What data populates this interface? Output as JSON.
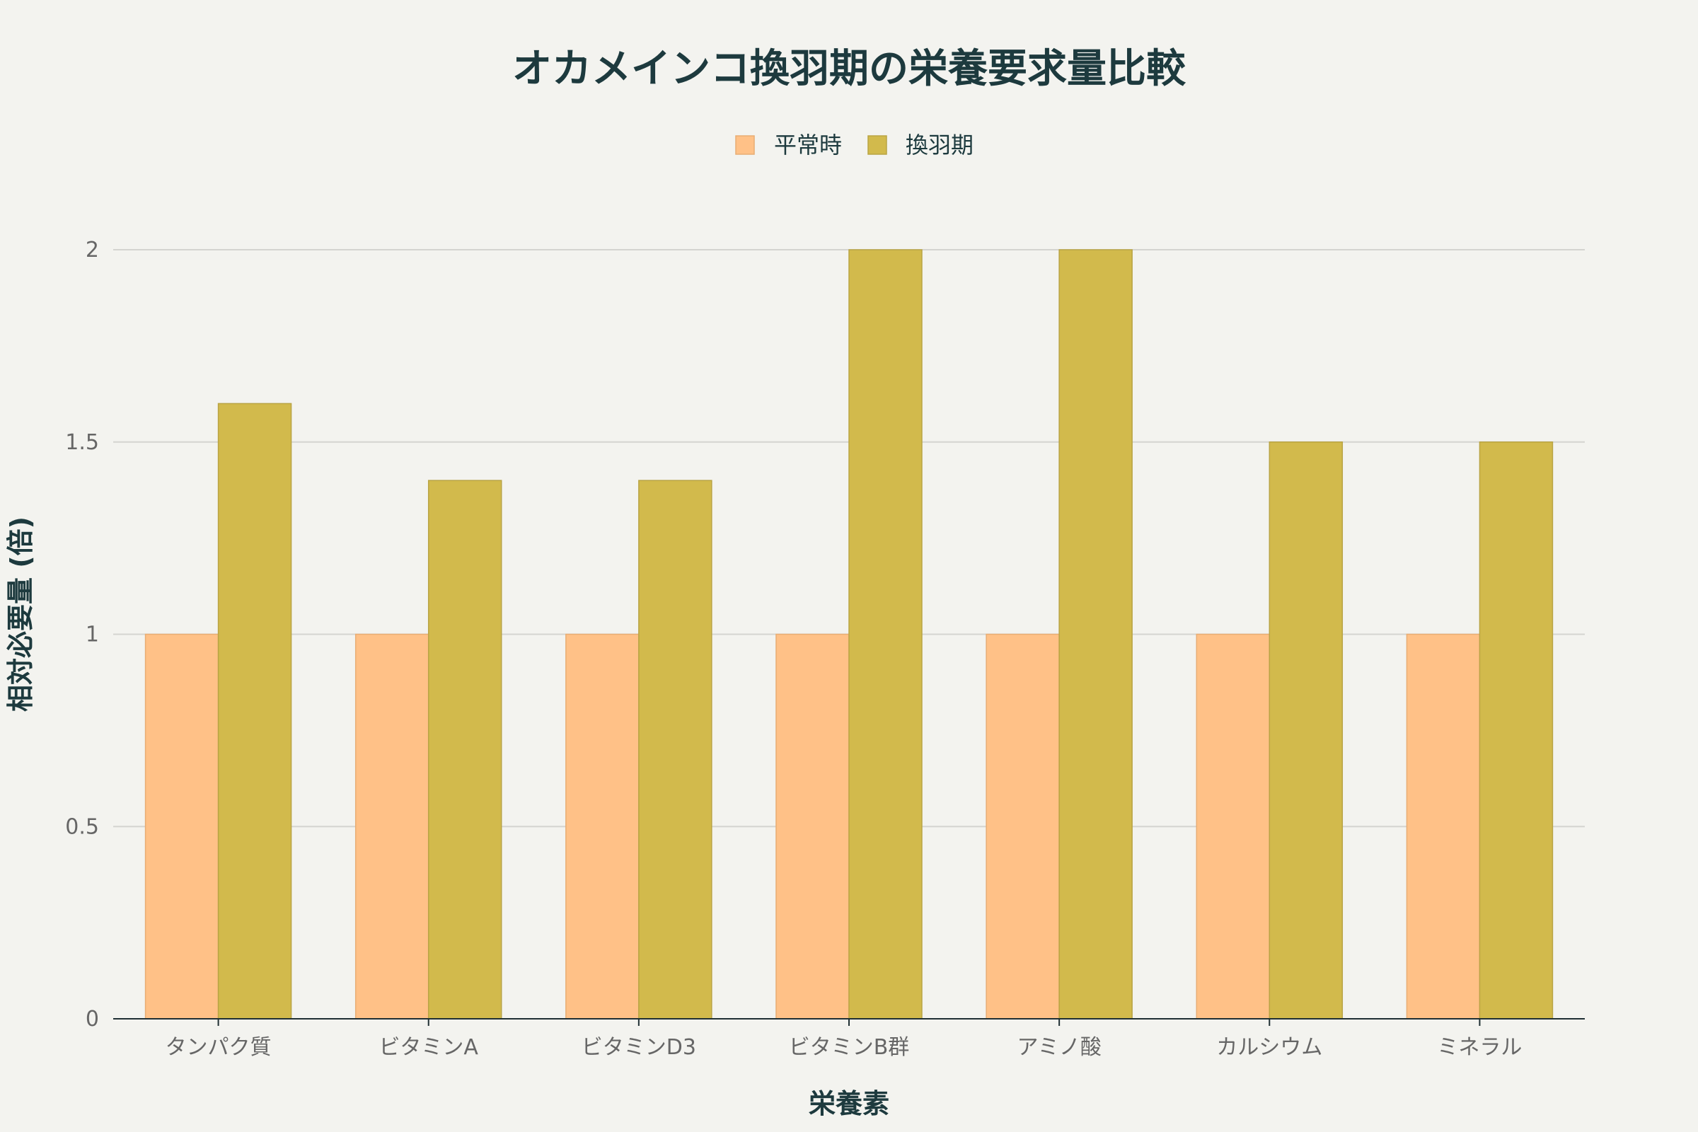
{
  "chart_data": {
    "type": "bar",
    "title": "オカメインコ換羽期の栄養要求量比較",
    "xlabel": "栄養素",
    "ylabel": "相対必要量 (倍)",
    "categories": [
      "タンパク質",
      "ビタミンA",
      "ビタミンD3",
      "ビタミンB群",
      "アミノ酸",
      "カルシウム",
      "ミネラル"
    ],
    "series": [
      {
        "name": "平常時",
        "color": "#ffc187",
        "values": [
          1,
          1,
          1,
          1,
          1,
          1,
          1
        ]
      },
      {
        "name": "換羽期",
        "color": "#d2ba4c",
        "values": [
          1.6,
          1.4,
          1.4,
          2,
          2,
          1.5,
          1.5
        ]
      }
    ],
    "ylim": [
      0,
      2
    ],
    "yticks": [
      0,
      0.5,
      1,
      1.5,
      2
    ],
    "ytick_labels": [
      "0",
      "0.5",
      "1",
      "1.5",
      "2"
    ],
    "grid": true,
    "legend_position": "top-center"
  }
}
